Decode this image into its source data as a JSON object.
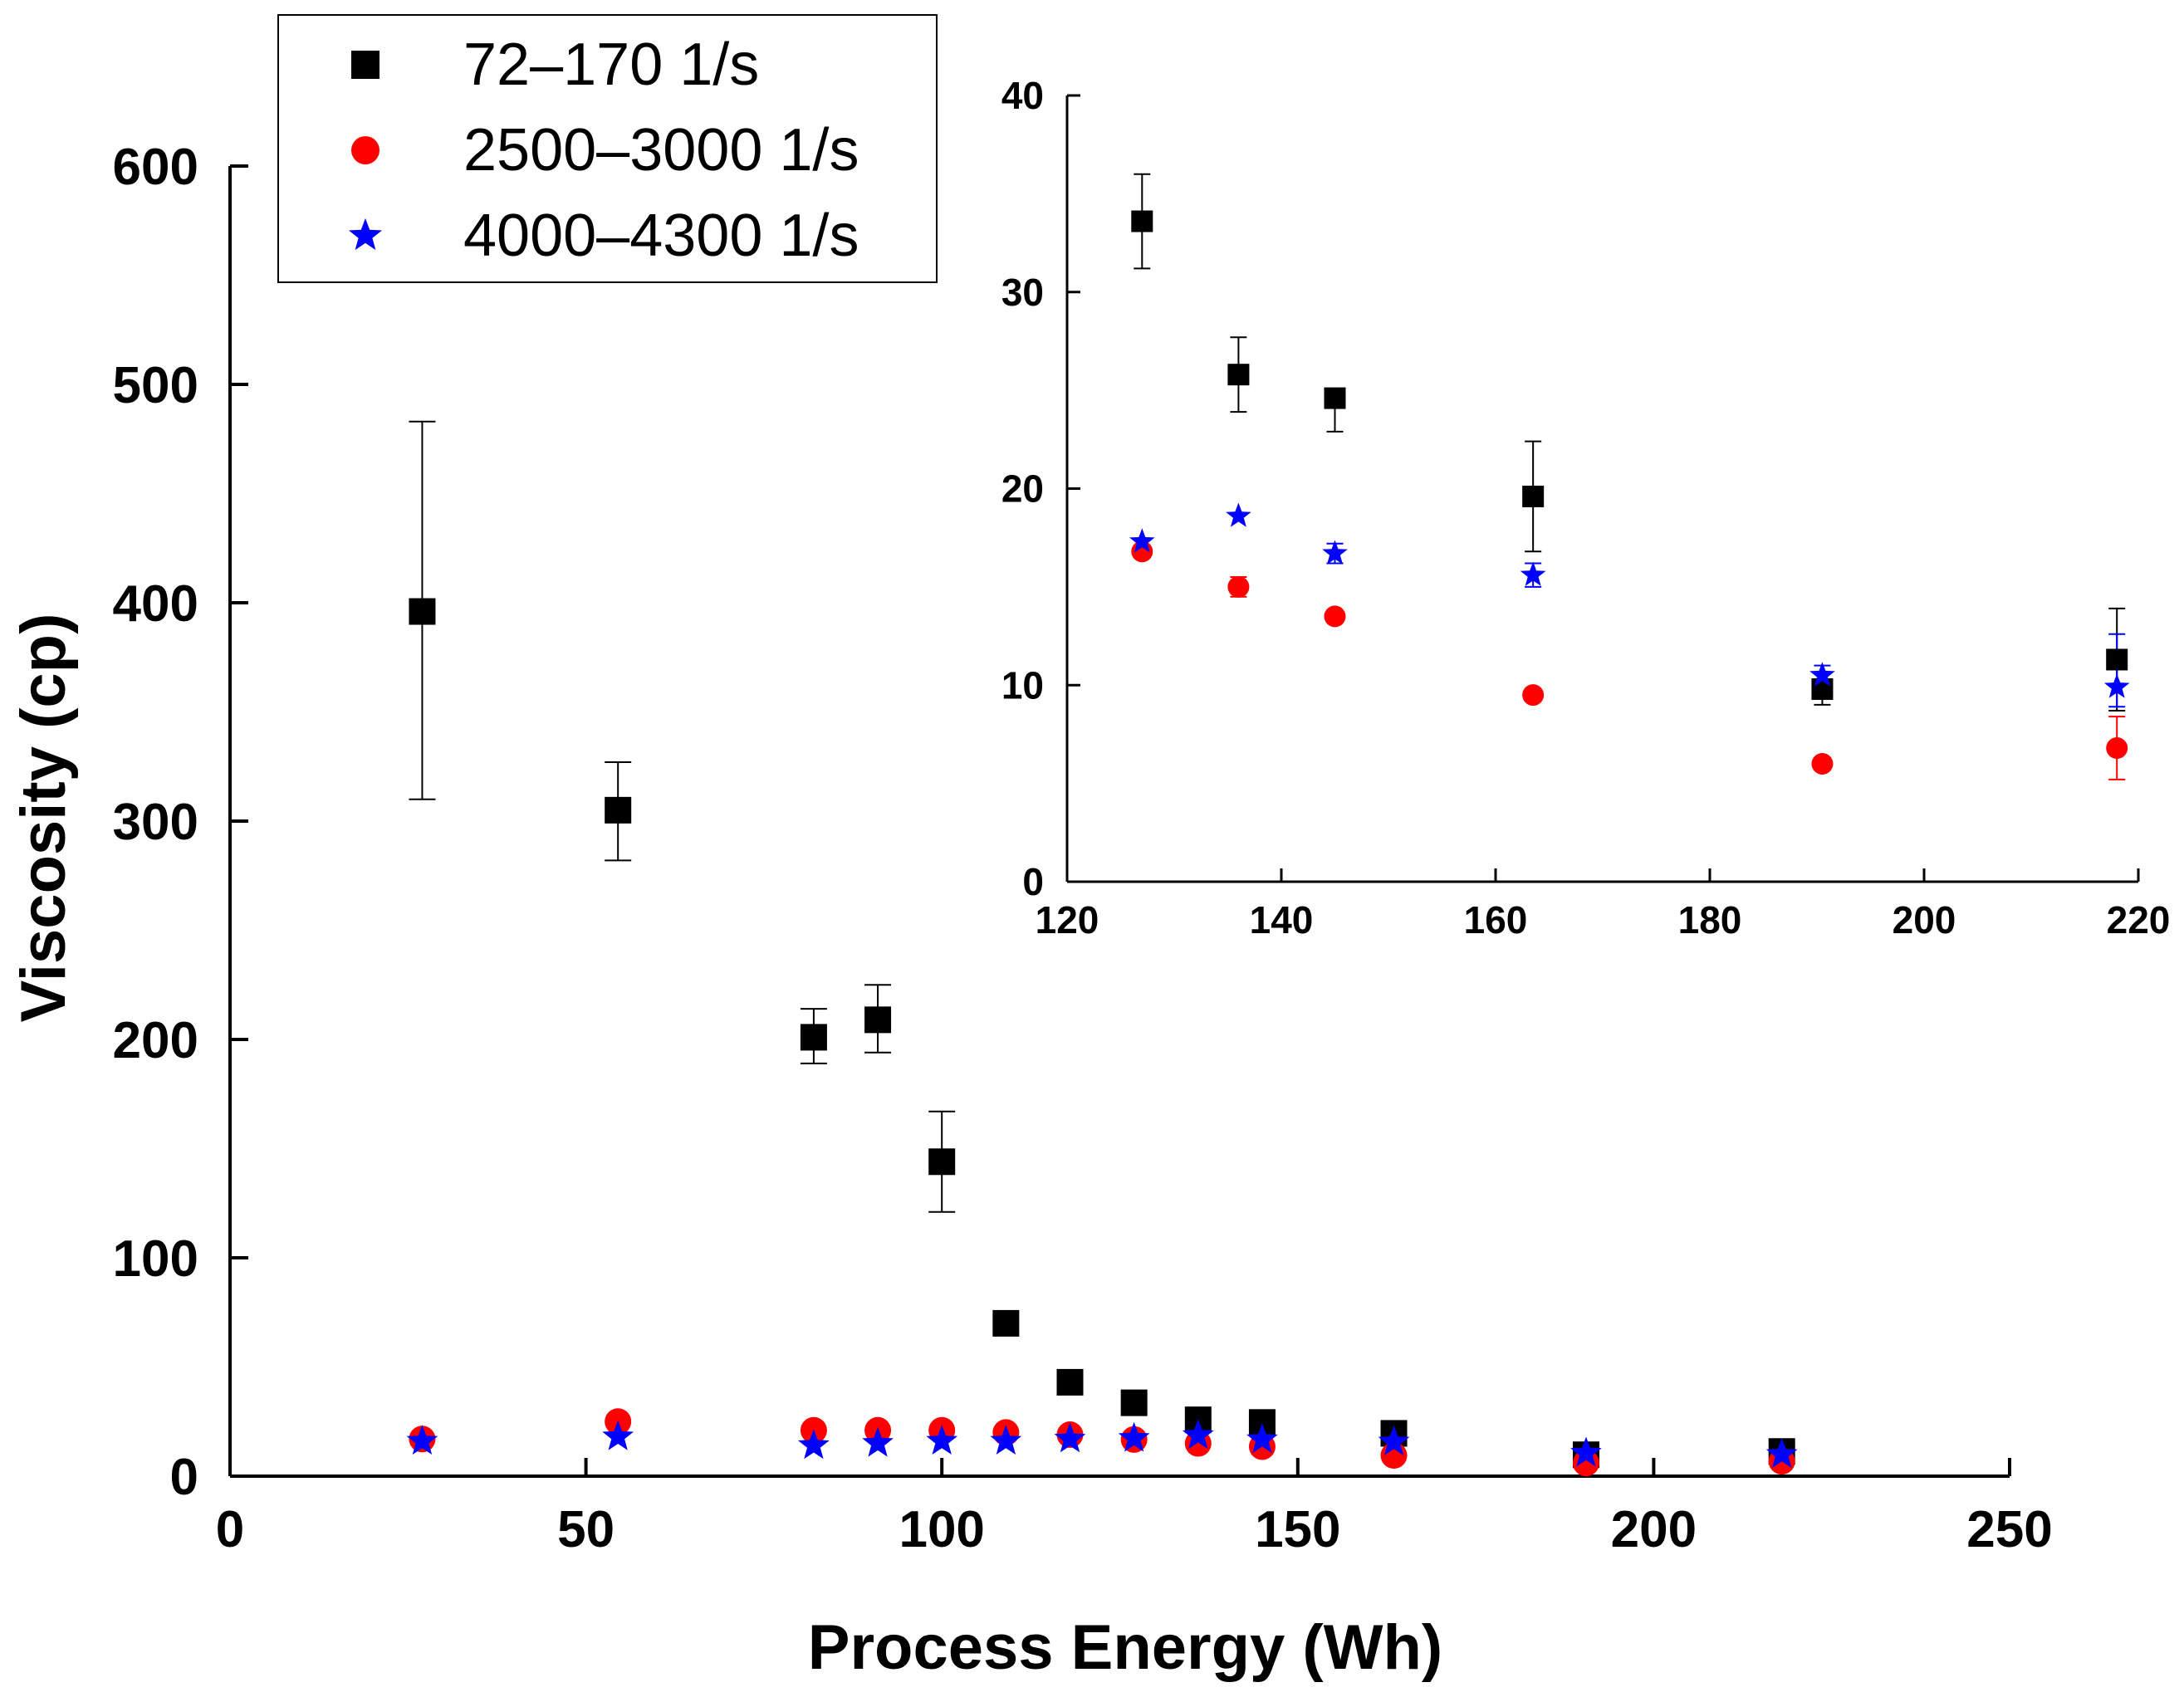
{
  "chart_data": [
    {
      "id": "main",
      "type": "scatter",
      "xlabel": "Process Energy (Wh)",
      "ylabel": "Viscosity (cp)",
      "xlim": [
        0,
        250
      ],
      "ylim": [
        0,
        600
      ],
      "xticks": [
        0,
        50,
        100,
        150,
        200,
        250
      ],
      "yticks": [
        0,
        100,
        200,
        300,
        400,
        500,
        600
      ],
      "legend": {
        "position": "top-left",
        "entries": [
          {
            "label": "72–170 1/s",
            "marker": "square",
            "color": "#000000"
          },
          {
            "label": "2500–3000 1/s",
            "marker": "circle",
            "color": "#ff0000"
          },
          {
            "label": "4000–4300 1/s",
            "marker": "star",
            "color": "#0000ff"
          }
        ]
      },
      "series": [
        {
          "name": "72–170 1/s",
          "marker": "square",
          "color": "#000000",
          "points": [
            {
              "x": 27,
              "y": 396,
              "lo": 310,
              "hi": 483
            },
            {
              "x": 54.5,
              "y": 305,
              "lo": 282,
              "hi": 327
            },
            {
              "x": 82,
              "y": 201,
              "lo": 189,
              "hi": 214
            },
            {
              "x": 91,
              "y": 209,
              "lo": 194,
              "hi": 225
            },
            {
              "x": 100,
              "y": 144,
              "lo": 121,
              "hi": 167
            },
            {
              "x": 109,
              "y": 70
            },
            {
              "x": 118,
              "y": 43
            },
            {
              "x": 127,
              "y": 33.6,
              "lo": 31.2,
              "hi": 36
            },
            {
              "x": 136,
              "y": 25.8,
              "lo": 23.9,
              "hi": 27.7
            },
            {
              "x": 145,
              "y": 24.6,
              "lo": 22.9,
              "hi": 24.6
            },
            {
              "x": 163.5,
              "y": 19.6,
              "lo": 16.8,
              "hi": 22.4
            },
            {
              "x": 190.5,
              "y": 9.8,
              "lo": 9.0,
              "hi": 10.6
            },
            {
              "x": 218,
              "y": 11.3,
              "lo": 8.7,
              "hi": 13.9
            }
          ]
        },
        {
          "name": "2500–3000 1/s",
          "marker": "circle",
          "color": "#ff0000",
          "points": [
            {
              "x": 27,
              "y": 17
            },
            {
              "x": 54.5,
              "y": 25
            },
            {
              "x": 82,
              "y": 21
            },
            {
              "x": 91,
              "y": 21
            },
            {
              "x": 100,
              "y": 21
            },
            {
              "x": 109,
              "y": 20
            },
            {
              "x": 118,
              "y": 19
            },
            {
              "x": 127,
              "y": 16.8
            },
            {
              "x": 136,
              "y": 15,
              "lo": 14.5,
              "hi": 15.5
            },
            {
              "x": 145,
              "y": 13.5
            },
            {
              "x": 163.5,
              "y": 9.5
            },
            {
              "x": 190.5,
              "y": 6
            },
            {
              "x": 218,
              "y": 6.8,
              "lo": 5.2,
              "hi": 8.4
            }
          ]
        },
        {
          "name": "4000–4300 1/s",
          "marker": "star",
          "color": "#0000ff",
          "points": [
            {
              "x": 27,
              "y": 16
            },
            {
              "x": 54.5,
              "y": 18
            },
            {
              "x": 82,
              "y": 14
            },
            {
              "x": 91,
              "y": 15
            },
            {
              "x": 100,
              "y": 16
            },
            {
              "x": 109,
              "y": 16
            },
            {
              "x": 118,
              "y": 17
            },
            {
              "x": 127,
              "y": 17.3
            },
            {
              "x": 136,
              "y": 18.6
            },
            {
              "x": 145,
              "y": 16.7,
              "lo": 16.2,
              "hi": 17.2
            },
            {
              "x": 163.5,
              "y": 15.6,
              "lo": 15.0,
              "hi": 16.2
            },
            {
              "x": 190.5,
              "y": 10.5,
              "lo": 10.0,
              "hi": 11.0
            },
            {
              "x": 218,
              "y": 9.9,
              "lo": 8.9,
              "hi": 12.6
            }
          ]
        }
      ]
    },
    {
      "id": "inset",
      "type": "scatter",
      "xlabel": "",
      "ylabel": "",
      "xlim": [
        120,
        220
      ],
      "ylim": [
        0,
        40
      ],
      "xticks": [
        120,
        140,
        160,
        180,
        200,
        220
      ],
      "yticks": [
        0,
        10,
        20,
        30,
        40
      ]
    }
  ]
}
